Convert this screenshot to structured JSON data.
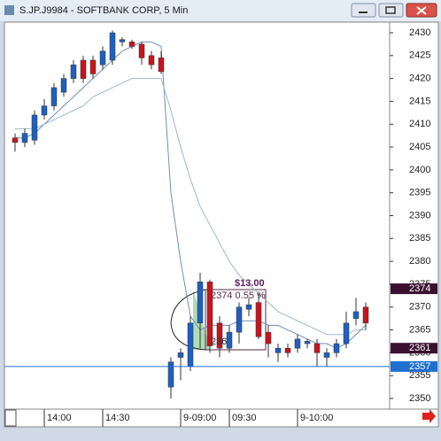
{
  "chart_data": {
    "type": "candlestick",
    "title": "S.JP.J9984 - SOFTBANK CORP, 5 Min",
    "categories": [
      null,
      null,
      null,
      "14:00",
      null,
      null,
      null,
      null,
      null,
      "14:30",
      null,
      null,
      null,
      null,
      null,
      null,
      null,
      "9-09:00",
      null,
      null,
      null,
      null,
      "09:30",
      null,
      null,
      null,
      null,
      null,
      null,
      "9-10:00",
      null,
      null,
      null,
      null,
      null,
      null,
      null
    ],
    "open": [
      2407,
      2406,
      2406.5,
      2412,
      2414,
      2417,
      2420,
      2424,
      2424,
      2423,
      2424,
      2428,
      2428,
      2427.5,
      2425,
      2424.5,
      2352.5,
      2359,
      2357,
      2366.5,
      2375.5,
      2366.5,
      2361,
      2364.5,
      2369.5,
      2371,
      2364.5,
      2360,
      2361,
      2361,
      2362,
      2362,
      2359,
      2360,
      2362,
      2367.5,
      2370
    ],
    "high": [
      2408,
      2409,
      2413,
      2415.5,
      2419,
      2421,
      2424,
      2425,
      2425,
      2427,
      2430.5,
      2429,
      2428.5,
      2428,
      2426,
      2426,
      2359,
      2361,
      2368,
      2377.5,
      2376,
      2368,
      2366,
      2371,
      2372,
      2373,
      2366,
      2362,
      2362,
      2364,
      2363,
      2363,
      2361,
      2363,
      2369,
      2372,
      2371
    ],
    "low": [
      2404,
      2405,
      2405.5,
      2411,
      2413,
      2416,
      2419,
      2419,
      2420,
      2422,
      2423,
      2427,
      2426.5,
      2423,
      2422,
      2421,
      2350,
      2354,
      2356,
      2361,
      2360,
      2359,
      2360,
      2362,
      2368,
      2363,
      2359,
      2358,
      2359,
      2360,
      2361,
      2357,
      2357,
      2359,
      2361,
      2366,
      2365
    ],
    "close": [
      2406,
      2408,
      2412,
      2414,
      2418,
      2420,
      2423,
      2420,
      2421,
      2426,
      2430,
      2428.5,
      2427,
      2424.5,
      2423,
      2421.5,
      2358,
      2360,
      2366.5,
      2375.5,
      2361.5,
      2361,
      2364.5,
      2370,
      2370.5,
      2363.5,
      2362,
      2361,
      2360,
      2363,
      2362.5,
      2360,
      2360,
      2362,
      2366.5,
      2369,
      2366.5
    ],
    "up_color": "#1f5fbf",
    "down_color": "#c8141e",
    "overlays": [
      {
        "color": "#6f8fb8",
        "values": [
          2407,
          2407,
          2408,
          2410,
          2412,
          2414,
          2416,
          2418,
          2420,
          2422,
          2424,
          2426,
          2427,
          2428,
          2428,
          2427,
          2395,
          2380,
          2368,
          2365,
          2366,
          2366,
          2366,
          2367,
          2367,
          2367,
          2366,
          2366,
          2365,
          2364,
          2363,
          2362,
          2362,
          2361,
          2362,
          2364,
          2366
        ]
      },
      {
        "color": "#9fb8c8",
        "values": [
          2409,
          2409,
          2409,
          2410,
          2411,
          2412,
          2413,
          2414,
          2416,
          2417,
          2418,
          2419,
          2420,
          2420,
          2420,
          2420,
          2413,
          2405,
          2398,
          2392,
          2388,
          2384,
          2380,
          2377,
          2375,
          2373,
          2371,
          2369,
          2368,
          2367,
          2366,
          2365,
          2364,
          2364,
          2364,
          2365,
          2365
        ]
      }
    ],
    "ylim": [
      2350,
      2430
    ],
    "yticks": [
      2350,
      2355,
      2360,
      2365,
      2370,
      2375,
      2380,
      2385,
      2390,
      2395,
      2400,
      2405,
      2410,
      2415,
      2420,
      2425,
      2430
    ],
    "price_markers": [
      2374,
      2361,
      2357
    ],
    "annotations": [
      "$13.00",
      "2374  0.55 %",
      "236"
    ]
  }
}
